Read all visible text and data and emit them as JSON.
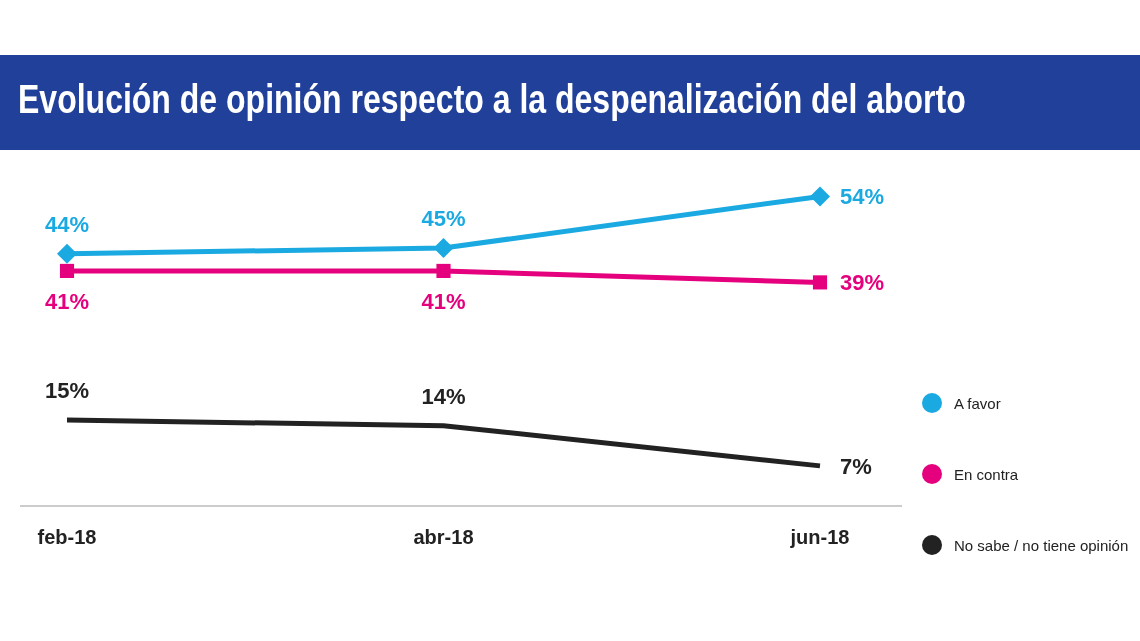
{
  "chart_data": {
    "type": "line",
    "title": "Evolución de opinión respecto a la despenalización del aborto",
    "categories": [
      "feb-18",
      "abr-18",
      "jun-18"
    ],
    "series": [
      {
        "name": "A favor",
        "color": "#1ba9e1",
        "values": [
          44,
          45,
          54
        ],
        "value_labels": [
          "44%",
          "45%",
          "54%"
        ],
        "marker": "diamond"
      },
      {
        "name": "En contra",
        "color": "#e5007e",
        "values": [
          41,
          41,
          39
        ],
        "value_labels": [
          "41%",
          "41%",
          "39%"
        ],
        "marker": "square"
      },
      {
        "name": "No sabe / no tiene opinión",
        "color": "#222222",
        "values": [
          15,
          14,
          7
        ],
        "value_labels": [
          "15%",
          "14%",
          "7%"
        ],
        "marker": "none"
      }
    ],
    "legend": "right",
    "grid": false,
    "tick_labels": "x"
  }
}
